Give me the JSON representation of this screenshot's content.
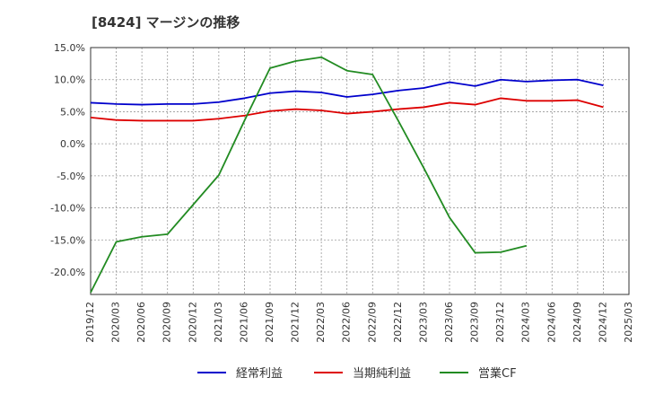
{
  "chart_data": {
    "type": "line",
    "title": "[8424]  マージンの推移",
    "xlabel": "",
    "ylabel": "",
    "ylim": [
      -23.5,
      15
    ],
    "yticks": [
      15,
      10,
      5,
      0,
      -5,
      -10,
      -15,
      -20
    ],
    "ytick_labels": [
      "15.0%",
      "10.0%",
      "5.0%",
      "0.0%",
      "-5.0%",
      "-10.0%",
      "-15.0%",
      "-20.0%"
    ],
    "x_labels": [
      "2019/12",
      "2020/03",
      "2020/06",
      "2020/09",
      "2020/12",
      "2021/03",
      "2021/06",
      "2021/09",
      "2021/12",
      "2022/03",
      "2022/06",
      "2022/09",
      "2022/12",
      "2023/03",
      "2023/06",
      "2023/09",
      "2023/12",
      "2024/03",
      "2024/06",
      "2024/09",
      "2024/12",
      "2025/03"
    ],
    "grid": true,
    "legend_position": "bottom",
    "series": [
      {
        "name": "経常利益",
        "color": "#0000cc",
        "values": [
          6.4,
          6.2,
          6.1,
          6.2,
          6.2,
          6.5,
          7.1,
          7.9,
          8.2,
          8.0,
          7.3,
          7.7,
          8.3,
          8.7,
          9.6,
          9.0,
          10.0,
          9.7,
          9.9,
          10.0,
          9.1,
          null
        ]
      },
      {
        "name": "当期純利益",
        "color": "#dd0000",
        "values": [
          4.1,
          3.7,
          3.6,
          3.6,
          3.6,
          3.9,
          4.4,
          5.1,
          5.4,
          5.2,
          4.7,
          5.0,
          5.4,
          5.7,
          6.4,
          6.1,
          7.1,
          6.7,
          6.7,
          6.8,
          5.7,
          null
        ]
      },
      {
        "name": "営業CF",
        "color": "#228b22",
        "values": [
          -23.2,
          -15.3,
          -14.5,
          -14.1,
          -9.5,
          -4.9,
          3.6,
          11.8,
          12.9,
          13.5,
          11.4,
          10.8,
          3.6,
          -3.8,
          -11.5,
          -17.0,
          -16.9,
          -15.9,
          null,
          null,
          null,
          null
        ]
      }
    ]
  }
}
